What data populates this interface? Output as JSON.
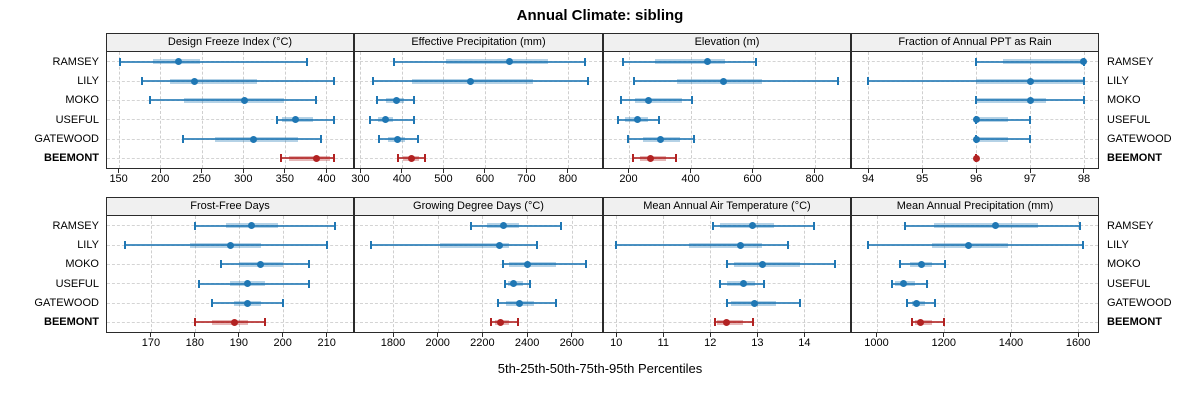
{
  "title": "Annual Climate: sibling",
  "footer_label": "5th-25th-50th-75th-95th Percentiles",
  "sites": [
    "RAMSEY",
    "LILY",
    "MOKO",
    "USEFUL",
    "GATEWOOD",
    "BEEMONT"
  ],
  "highlight_site": "BEEMONT",
  "percentile_levels": [
    5,
    25,
    50,
    75,
    95
  ],
  "colors": {
    "series_blue": "#1f77b4",
    "series_blue_line": "rgba(31,119,180,0.8)",
    "series_blue_band": "rgba(31,119,180,0.33)",
    "highlight_red": "#b22222",
    "highlight_red_line": "rgba(178,34,34,0.8)",
    "highlight_red_band": "rgba(178,34,34,0.33)",
    "panel_header_bg": "#f0f0f0",
    "panel_border": "#2b2b2b",
    "gridline": "#cfcfcf"
  },
  "chart_data": [
    {
      "type": "dot-whisker",
      "title": "Design Freeze Index (°C)",
      "row": 0,
      "col": 0,
      "xlim": [
        136,
        432
      ],
      "ticks": [
        150,
        200,
        250,
        300,
        350,
        400
      ],
      "series": [
        {
          "name": "RAMSEY",
          "values": [
            152,
            191,
            222,
            248,
            377
          ]
        },
        {
          "name": "LILY",
          "values": [
            178,
            212,
            241,
            317,
            409
          ]
        },
        {
          "name": "MOKO",
          "values": [
            188,
            229,
            301,
            349,
            387
          ]
        },
        {
          "name": "USEFUL",
          "values": [
            341,
            347,
            363,
            384,
            409
          ]
        },
        {
          "name": "GATEWOOD",
          "values": [
            228,
            266,
            312,
            366,
            394
          ]
        },
        {
          "name": "BEEMONT",
          "values": [
            345,
            355,
            388,
            404,
            409
          ]
        }
      ]
    },
    {
      "type": "dot-whisker",
      "title": "Effective Precipitation (mm)",
      "row": 0,
      "col": 1,
      "xlim": [
        287,
        882
      ],
      "ticks": [
        300,
        400,
        500,
        600,
        700,
        800
      ],
      "series": [
        {
          "name": "RAMSEY",
          "values": [
            380,
            506,
            658,
            752,
            840
          ]
        },
        {
          "name": "LILY",
          "values": [
            330,
            425,
            565,
            715,
            849
          ]
        },
        {
          "name": "MOKO",
          "values": [
            340,
            362,
            388,
            404,
            428
          ]
        },
        {
          "name": "USEFUL",
          "values": [
            322,
            342,
            360,
            378,
            430
          ]
        },
        {
          "name": "GATEWOOD",
          "values": [
            345,
            366,
            389,
            407,
            438
          ]
        },
        {
          "name": "BEEMONT",
          "values": [
            390,
            403,
            424,
            442,
            456
          ]
        }
      ]
    },
    {
      "type": "dot-whisker",
      "title": "Elevation (m)",
      "row": 0,
      "col": 2,
      "xlim": [
        121,
        914
      ],
      "ticks": [
        200,
        400,
        600,
        800
      ],
      "series": [
        {
          "name": "RAMSEY",
          "values": [
            181,
            286,
            456,
            510,
            612
          ]
        },
        {
          "name": "LILY",
          "values": [
            219,
            355,
            505,
            630,
            874
          ]
        },
        {
          "name": "MOKO",
          "values": [
            176,
            221,
            265,
            371,
            405
          ]
        },
        {
          "name": "USEFUL",
          "values": [
            166,
            190,
            230,
            264,
            298
          ]
        },
        {
          "name": "GATEWOOD",
          "values": [
            198,
            248,
            302,
            366,
            411
          ]
        },
        {
          "name": "BEEMONT",
          "values": [
            214,
            237,
            270,
            322,
            352
          ]
        }
      ]
    },
    {
      "type": "dot-whisker",
      "title": "Fraction of Annual PPT as Rain",
      "row": 0,
      "col": 3,
      "xlim": [
        93.7,
        98.26
      ],
      "ticks": [
        94,
        95,
        96,
        97,
        98
      ],
      "series": [
        {
          "name": "RAMSEY",
          "values": [
            96,
            96.5,
            98,
            98,
            98
          ]
        },
        {
          "name": "LILY",
          "values": [
            94,
            96,
            97,
            98,
            98
          ]
        },
        {
          "name": "MOKO",
          "values": [
            96,
            96,
            97,
            97.3,
            98
          ]
        },
        {
          "name": "USEFUL",
          "values": [
            96,
            96,
            96,
            96.6,
            97
          ]
        },
        {
          "name": "GATEWOOD",
          "values": [
            96,
            96,
            96,
            96.6,
            97
          ]
        },
        {
          "name": "BEEMONT",
          "values": [
            96,
            96,
            96,
            96,
            96
          ]
        }
      ]
    },
    {
      "type": "dot-whisker",
      "title": "Frost-Free Days",
      "row": 1,
      "col": 0,
      "xlim": [
        160,
        216
      ],
      "ticks": [
        170,
        180,
        190,
        200,
        210
      ],
      "series": [
        {
          "name": "RAMSEY",
          "values": [
            180,
            187,
            193,
            199,
            212
          ]
        },
        {
          "name": "LILY",
          "values": [
            164,
            179,
            188,
            195,
            210
          ]
        },
        {
          "name": "MOKO",
          "values": [
            186,
            190,
            195,
            200,
            206
          ]
        },
        {
          "name": "USEFUL",
          "values": [
            181,
            188,
            192,
            196,
            206
          ]
        },
        {
          "name": "GATEWOOD",
          "values": [
            184,
            189,
            192,
            195,
            200
          ]
        },
        {
          "name": "BEEMONT",
          "values": [
            180,
            184,
            189,
            192,
            196
          ]
        }
      ]
    },
    {
      "type": "dot-whisker",
      "title": "Growing Degree Days (°C)",
      "row": 1,
      "col": 1,
      "xlim": [
        1630,
        2735
      ],
      "ticks": [
        1800,
        2000,
        2200,
        2400,
        2600
      ],
      "series": [
        {
          "name": "RAMSEY",
          "values": [
            2150,
            2220,
            2295,
            2365,
            2550
          ]
        },
        {
          "name": "LILY",
          "values": [
            1700,
            2010,
            2275,
            2320,
            2445
          ]
        },
        {
          "name": "MOKO",
          "values": [
            2290,
            2320,
            2400,
            2530,
            2665
          ]
        },
        {
          "name": "USEFUL",
          "values": [
            2300,
            2315,
            2340,
            2380,
            2415
          ]
        },
        {
          "name": "GATEWOOD",
          "values": [
            2270,
            2305,
            2365,
            2430,
            2530
          ]
        },
        {
          "name": "BEEMONT",
          "values": [
            2240,
            2255,
            2280,
            2320,
            2360
          ]
        }
      ]
    },
    {
      "type": "dot-whisker",
      "title": "Mean Annual Air Temperature (°C)",
      "row": 1,
      "col": 2,
      "xlim": [
        9.74,
        14.97
      ],
      "ticks": [
        10,
        11,
        12,
        13,
        14
      ],
      "series": [
        {
          "name": "RAMSEY",
          "values": [
            12.05,
            12.2,
            12.9,
            13.35,
            14.2
          ]
        },
        {
          "name": "LILY",
          "values": [
            10.0,
            11.55,
            12.65,
            13.1,
            13.65
          ]
        },
        {
          "name": "MOKO",
          "values": [
            12.35,
            12.5,
            13.1,
            13.9,
            14.65
          ]
        },
        {
          "name": "USEFUL",
          "values": [
            12.2,
            12.35,
            12.7,
            12.95,
            13.15
          ]
        },
        {
          "name": "GATEWOOD",
          "values": [
            12.35,
            12.45,
            12.95,
            13.4,
            13.9
          ]
        },
        {
          "name": "BEEMONT",
          "values": [
            12.1,
            12.15,
            12.35,
            12.7,
            12.9
          ]
        }
      ]
    },
    {
      "type": "dot-whisker",
      "title": "Mean Annual Precipitation (mm)",
      "row": 1,
      "col": 3,
      "xlim": [
        927,
        1659
      ],
      "ticks": [
        1000,
        1200,
        1400,
        1600
      ],
      "series": [
        {
          "name": "RAMSEY",
          "values": [
            1085,
            1170,
            1355,
            1480,
            1605
          ]
        },
        {
          "name": "LILY",
          "values": [
            975,
            1165,
            1275,
            1390,
            1615
          ]
        },
        {
          "name": "MOKO",
          "values": [
            1070,
            1100,
            1135,
            1165,
            1205
          ]
        },
        {
          "name": "USEFUL",
          "values": [
            1045,
            1055,
            1080,
            1115,
            1150
          ]
        },
        {
          "name": "GATEWOOD",
          "values": [
            1090,
            1105,
            1120,
            1145,
            1175
          ]
        },
        {
          "name": "BEEMONT",
          "values": [
            1105,
            1115,
            1130,
            1165,
            1200
          ]
        }
      ]
    }
  ]
}
